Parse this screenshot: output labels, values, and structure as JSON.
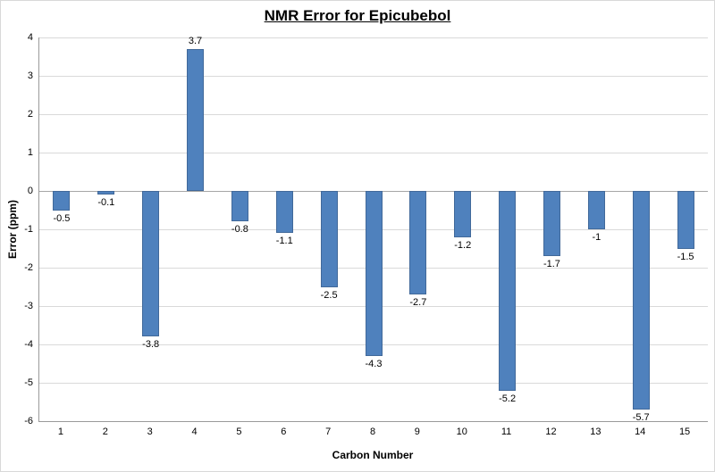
{
  "chart_data": {
    "type": "bar",
    "title": "NMR Error for Epicubebol",
    "xlabel": "Carbon Number",
    "ylabel": "Error (ppm)",
    "categories": [
      "1",
      "2",
      "3",
      "4",
      "5",
      "6",
      "7",
      "8",
      "9",
      "10",
      "11",
      "12",
      "13",
      "14",
      "15"
    ],
    "values": [
      -0.5,
      -0.1,
      -3.8,
      3.7,
      -0.8,
      -1.1,
      -2.5,
      -4.3,
      -2.7,
      -1.2,
      -5.2,
      -1.7,
      -1,
      -5.7,
      -1.5
    ],
    "data_labels": [
      "-0.5",
      "-0.1",
      "-3.8",
      "3.7",
      "-0.8",
      "-1.1",
      "-2.5",
      "-4.3",
      "-2.7",
      "-1.2",
      "-5.2",
      "-1.7",
      "-1",
      "-5.7",
      "-1.5"
    ],
    "ylim": [
      -6,
      4
    ],
    "ytick_step": 1,
    "grid": true,
    "legend": "none",
    "colors": {
      "bar": "#4f81bd",
      "bar_border": "#41699a",
      "gridline": "#d9d9d9",
      "zero_line": "#a6a6a6",
      "axis_line": "#9a9a9a",
      "text": "#000000"
    }
  }
}
